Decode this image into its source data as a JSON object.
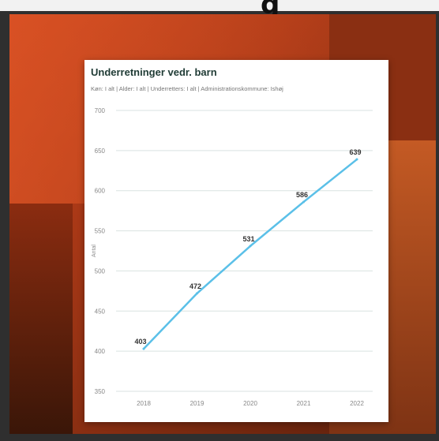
{
  "header": {
    "partial_text": "g"
  },
  "chart_data": {
    "type": "line",
    "title": "Underretninger vedr. barn",
    "subtitle": "Køn: I alt | Alder: I alt | Underretters: I alt | Administrationskommune: Ishøj",
    "ylabel": "Antal",
    "xlabel": "",
    "x": [
      "2018",
      "2019",
      "2020",
      "2021",
      "2022"
    ],
    "series": [
      {
        "values": [
          403,
          472,
          531,
          586,
          639
        ],
        "labels": [
          "403",
          "472",
          "531",
          "586",
          "639"
        ]
      }
    ],
    "ylim": [
      350,
      700
    ],
    "yticks": [
      350,
      400,
      450,
      500,
      550,
      600,
      650,
      700
    ],
    "line_color": "#5bc0e8",
    "grid": true
  }
}
